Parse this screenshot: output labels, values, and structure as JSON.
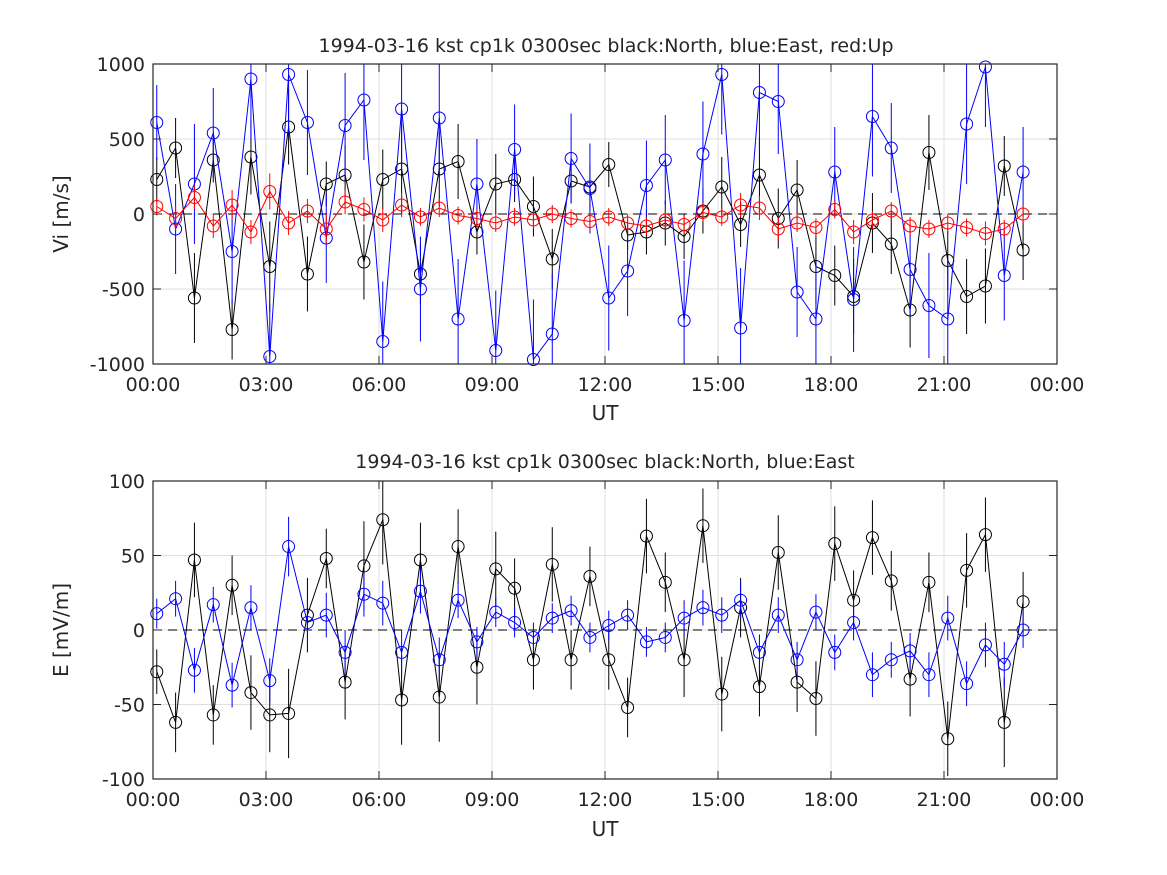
{
  "figure": {
    "background": "#ffffff"
  },
  "chart_data": [
    {
      "type": "line",
      "title": "1994-03-16 kst cp1k 0300sec black:North, blue:East, red:Up",
      "xlabel": "UT",
      "ylabel": "Vi [m/s]",
      "xlim": [
        0,
        24
      ],
      "ylim": [
        -1000,
        1000
      ],
      "x_tick_labels": [
        "00:00",
        "03:00",
        "06:00",
        "09:00",
        "12:00",
        "15:00",
        "18:00",
        "21:00",
        "00:00"
      ],
      "y_tick_labels": [
        "-1000",
        "-500",
        "0",
        "500",
        "1000"
      ],
      "y_ticks": [
        -1000,
        -500,
        0,
        500,
        1000
      ],
      "grid": true,
      "zero_line": true,
      "marker": "open-circle",
      "error_bars": true,
      "x": [
        0.1,
        0.6,
        1.1,
        1.6,
        2.1,
        2.6,
        3.1,
        3.6,
        4.1,
        4.6,
        5.1,
        5.6,
        6.1,
        6.6,
        7.1,
        7.6,
        8.1,
        8.6,
        9.1,
        9.6,
        10.1,
        10.6,
        11.1,
        11.6,
        12.1,
        12.6,
        13.1,
        13.6,
        14.1,
        14.6,
        15.1,
        15.6,
        16.1,
        16.6,
        17.1,
        17.6,
        18.1,
        18.6,
        19.1,
        19.6,
        20.1,
        20.6,
        21.1,
        21.6,
        22.1,
        22.6,
        23.1
      ],
      "series": [
        {
          "name": "North",
          "color": "#000000",
          "values": [
            230,
            440,
            -560,
            360,
            -770,
            380,
            -350,
            580,
            -400,
            200,
            260,
            -320,
            230,
            300,
            -400,
            300,
            350,
            -120,
            200,
            230,
            50,
            -300,
            220,
            180,
            330,
            -140,
            -120,
            -60,
            -150,
            20,
            180,
            -70,
            260,
            -30,
            160,
            -350,
            -410,
            -550,
            -60,
            -200,
            -640,
            410,
            -310,
            -550,
            -480,
            320,
            -240
          ],
          "errors": [
            150,
            200,
            300,
            150,
            200,
            250,
            300,
            250,
            250,
            150,
            200,
            250,
            200,
            300,
            200,
            250,
            250,
            150,
            200,
            150,
            200,
            200,
            150,
            150,
            150,
            100,
            150,
            150,
            150,
            150,
            200,
            150,
            250,
            200,
            200,
            250,
            200,
            250,
            200,
            200,
            250,
            250,
            200,
            250,
            250,
            200,
            200
          ]
        },
        {
          "name": "East",
          "color": "#0000ff",
          "values": [
            610,
            -100,
            200,
            540,
            -250,
            900,
            -950,
            930,
            610,
            -160,
            590,
            760,
            -850,
            700,
            -500,
            640,
            -700,
            200,
            -910,
            430,
            -970,
            -800,
            370,
            170,
            -560,
            -380,
            190,
            360,
            -710,
            400,
            930,
            -760,
            810,
            750,
            -520,
            -700,
            280,
            -570,
            650,
            440,
            -370,
            -610,
            -700,
            600,
            980,
            -410,
            280
          ],
          "errors": [
            250,
            300,
            400,
            300,
            350,
            400,
            350,
            400,
            350,
            300,
            350,
            400,
            400,
            400,
            350,
            400,
            400,
            300,
            400,
            300,
            400,
            400,
            300,
            300,
            350,
            300,
            300,
            300,
            400,
            350,
            400,
            400,
            400,
            350,
            300,
            400,
            300,
            350,
            400,
            300,
            300,
            350,
            400,
            400,
            400,
            300,
            300
          ]
        },
        {
          "name": "Up",
          "color": "#ff0000",
          "values": [
            50,
            -30,
            110,
            -80,
            60,
            -120,
            150,
            -60,
            20,
            -100,
            80,
            30,
            -40,
            60,
            -20,
            40,
            -10,
            -30,
            -60,
            -20,
            -40,
            0,
            -30,
            -50,
            -20,
            -60,
            -80,
            -40,
            -70,
            10,
            -20,
            60,
            40,
            -100,
            -60,
            -90,
            30,
            -120,
            -40,
            20,
            -80,
            -100,
            -60,
            -90,
            -130,
            -100,
            0
          ],
          "errors": [
            60,
            80,
            80,
            80,
            100,
            80,
            120,
            80,
            80,
            100,
            80,
            80,
            80,
            80,
            60,
            60,
            60,
            60,
            60,
            60,
            60,
            60,
            60,
            60,
            60,
            60,
            60,
            60,
            60,
            60,
            60,
            80,
            80,
            80,
            60,
            60,
            60,
            80,
            60,
            60,
            60,
            60,
            60,
            60,
            80,
            60,
            60
          ]
        }
      ]
    },
    {
      "type": "line",
      "title": "1994-03-16 kst cp1k 0300sec black:North, blue:East",
      "xlabel": "UT",
      "ylabel": "E [mV/m]",
      "xlim": [
        0,
        24
      ],
      "ylim": [
        -100,
        100
      ],
      "x_tick_labels": [
        "00:00",
        "03:00",
        "06:00",
        "09:00",
        "12:00",
        "15:00",
        "18:00",
        "21:00",
        "00:00"
      ],
      "y_tick_labels": [
        "-100",
        "-50",
        "0",
        "50",
        "100"
      ],
      "y_ticks": [
        -100,
        -50,
        0,
        50,
        100
      ],
      "grid": true,
      "zero_line": true,
      "marker": "open-circle",
      "error_bars": true,
      "x": [
        0.1,
        0.6,
        1.1,
        1.6,
        2.1,
        2.6,
        3.1,
        3.6,
        4.1,
        4.6,
        5.1,
        5.6,
        6.1,
        6.6,
        7.1,
        7.6,
        8.1,
        8.6,
        9.1,
        9.6,
        10.1,
        10.6,
        11.1,
        11.6,
        12.1,
        12.6,
        13.1,
        13.6,
        14.1,
        14.6,
        15.1,
        15.6,
        16.1,
        16.6,
        17.1,
        17.6,
        18.1,
        18.6,
        19.1,
        19.6,
        20.1,
        20.6,
        21.1,
        21.6,
        22.1,
        22.6,
        23.1
      ],
      "series": [
        {
          "name": "North",
          "color": "#000000",
          "values": [
            -28,
            -62,
            47,
            -57,
            30,
            -42,
            -57,
            -56,
            10,
            48,
            -35,
            43,
            74,
            -47,
            47,
            -45,
            56,
            -25,
            41,
            28,
            -20,
            44,
            -20,
            36,
            -20,
            -52,
            63,
            32,
            -20,
            70,
            -43,
            15,
            -38,
            52,
            -35,
            -46,
            58,
            20,
            62,
            33,
            -33,
            32,
            -73,
            40,
            64,
            -62,
            19
          ],
          "errors": [
            15,
            20,
            25,
            20,
            20,
            25,
            25,
            30,
            25,
            20,
            25,
            30,
            30,
            30,
            25,
            30,
            25,
            25,
            25,
            20,
            20,
            25,
            20,
            20,
            20,
            20,
            25,
            20,
            25,
            25,
            25,
            20,
            20,
            25,
            20,
            25,
            25,
            20,
            25,
            20,
            25,
            20,
            25,
            25,
            25,
            30,
            20
          ]
        },
        {
          "name": "East",
          "color": "#0000ff",
          "values": [
            11,
            21,
            -27,
            17,
            -37,
            15,
            -34,
            56,
            5,
            10,
            -15,
            24,
            18,
            -15,
            26,
            -20,
            20,
            -8,
            12,
            5,
            -5,
            8,
            13,
            -5,
            3,
            10,
            -8,
            -5,
            8,
            15,
            10,
            20,
            -15,
            10,
            -20,
            12,
            -15,
            5,
            -30,
            -20,
            -14,
            -30,
            8,
            -36,
            -10,
            -23,
            0
          ],
          "errors": [
            10,
            12,
            15,
            12,
            15,
            15,
            15,
            20,
            15,
            15,
            15,
            15,
            15,
            15,
            15,
            15,
            12,
            10,
            10,
            10,
            10,
            10,
            10,
            10,
            10,
            10,
            10,
            10,
            12,
            12,
            12,
            12,
            12,
            12,
            12,
            12,
            12,
            12,
            15,
            12,
            12,
            15,
            15,
            15,
            15,
            15,
            12
          ]
        }
      ]
    }
  ]
}
